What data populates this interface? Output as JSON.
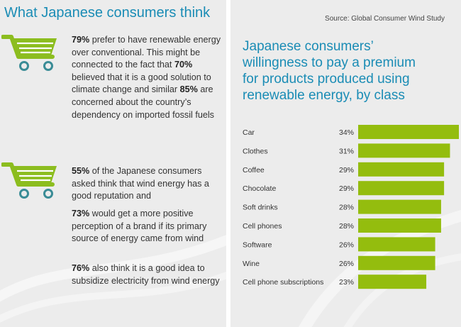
{
  "left": {
    "title": "What Japanese consumers think",
    "fact1": {
      "pct1": "79%",
      "text1": " prefer to have renewable energy over conventional. This might be connected to the fact that ",
      "pct2": "70%",
      "text2": " believed that it is a good solution to climate change and similar ",
      "pct3": "85%",
      "text3": " are concerned about the country’s dependency on imported fossil fuels"
    },
    "fact2": {
      "pct": "55%",
      "text": " of the Japanese consumers asked think that wind energy has a good reputation and"
    },
    "fact3": {
      "pct": "73%",
      "text": " would get a more positive perception of a brand if its primary source of energy came from wind"
    },
    "fact4": {
      "pct": "76%",
      "text": " also think it is a good idea to subsidize electricity from wind energy"
    }
  },
  "right": {
    "source": "Source: Global Consumer Wind Study",
    "title_lines": [
      "Japanese consumers’",
      "willingness to pay a premium",
      "for products produced using",
      "renewable energy, by class"
    ]
  },
  "colors": {
    "accent_blue": "#1a8cb5",
    "bar_green": "#94bd0e",
    "cart_green": "#8cbd1f",
    "cart_teal": "#3a8c96",
    "panel_bg": "#ececec"
  },
  "icons": [
    "shopping-cart-icon",
    "shopping-cart-icon"
  ],
  "chart_data": {
    "type": "bar",
    "orientation": "horizontal",
    "categories": [
      "Car",
      "Clothes",
      "Coffee",
      "Chocolate",
      "Soft drinks",
      "Cell phones",
      "Software",
      "Wine",
      "Cell phone subscriptions"
    ],
    "values": [
      34,
      31,
      29,
      29,
      28,
      28,
      26,
      26,
      23
    ],
    "value_labels": [
      "34%",
      "31%",
      "29%",
      "29%",
      "28%",
      "28%",
      "26%",
      "26%",
      "23%"
    ],
    "unit": "%",
    "title": "Japanese consumers’ willingness to pay a premium for products produced using renewable energy, by class",
    "xlabel": "",
    "ylabel": "",
    "xlim": [
      0,
      34
    ],
    "grid": false
  }
}
